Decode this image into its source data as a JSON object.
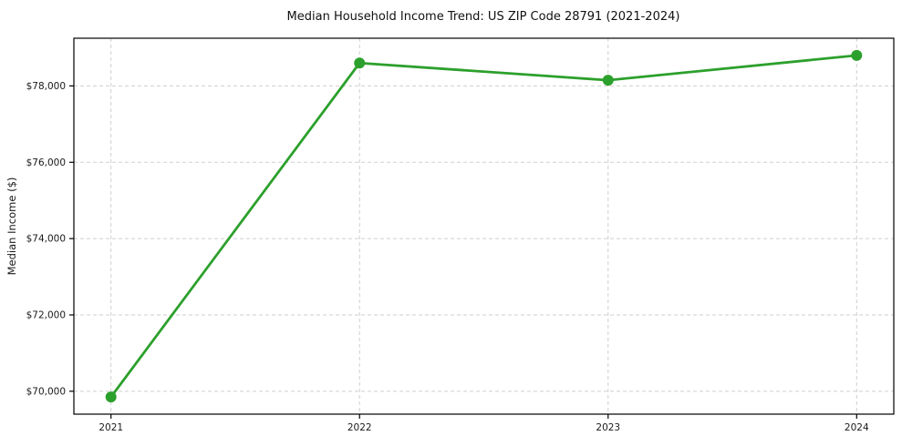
{
  "chart_data": {
    "type": "line",
    "title": "Median Household Income Trend: US ZIP Code 28791 (2021-2024)",
    "xlabel": "",
    "ylabel": "Median Income ($)",
    "x": [
      2021,
      2022,
      2023,
      2024
    ],
    "series": [
      {
        "name": "Median Household Income",
        "values": [
          69850,
          78600,
          78150,
          78800
        ]
      }
    ],
    "xtick_labels": [
      "2021",
      "2022",
      "2023",
      "2024"
    ],
    "yticks": [
      70000,
      72000,
      74000,
      76000,
      78000
    ],
    "ytick_labels": [
      "$70,000",
      "$72,000",
      "$74,000",
      "$76,000",
      "$78,000"
    ],
    "ylim": [
      69400,
      79250
    ],
    "grid": true,
    "grid_style": "dashed",
    "legend_position": "none",
    "colors": {
      "line": "#2ca02c",
      "marker": "#2ca02c",
      "grid": "#cfcfcf",
      "spine": "#000000",
      "text": "#1a1a1a",
      "background": "#ffffff"
    }
  }
}
